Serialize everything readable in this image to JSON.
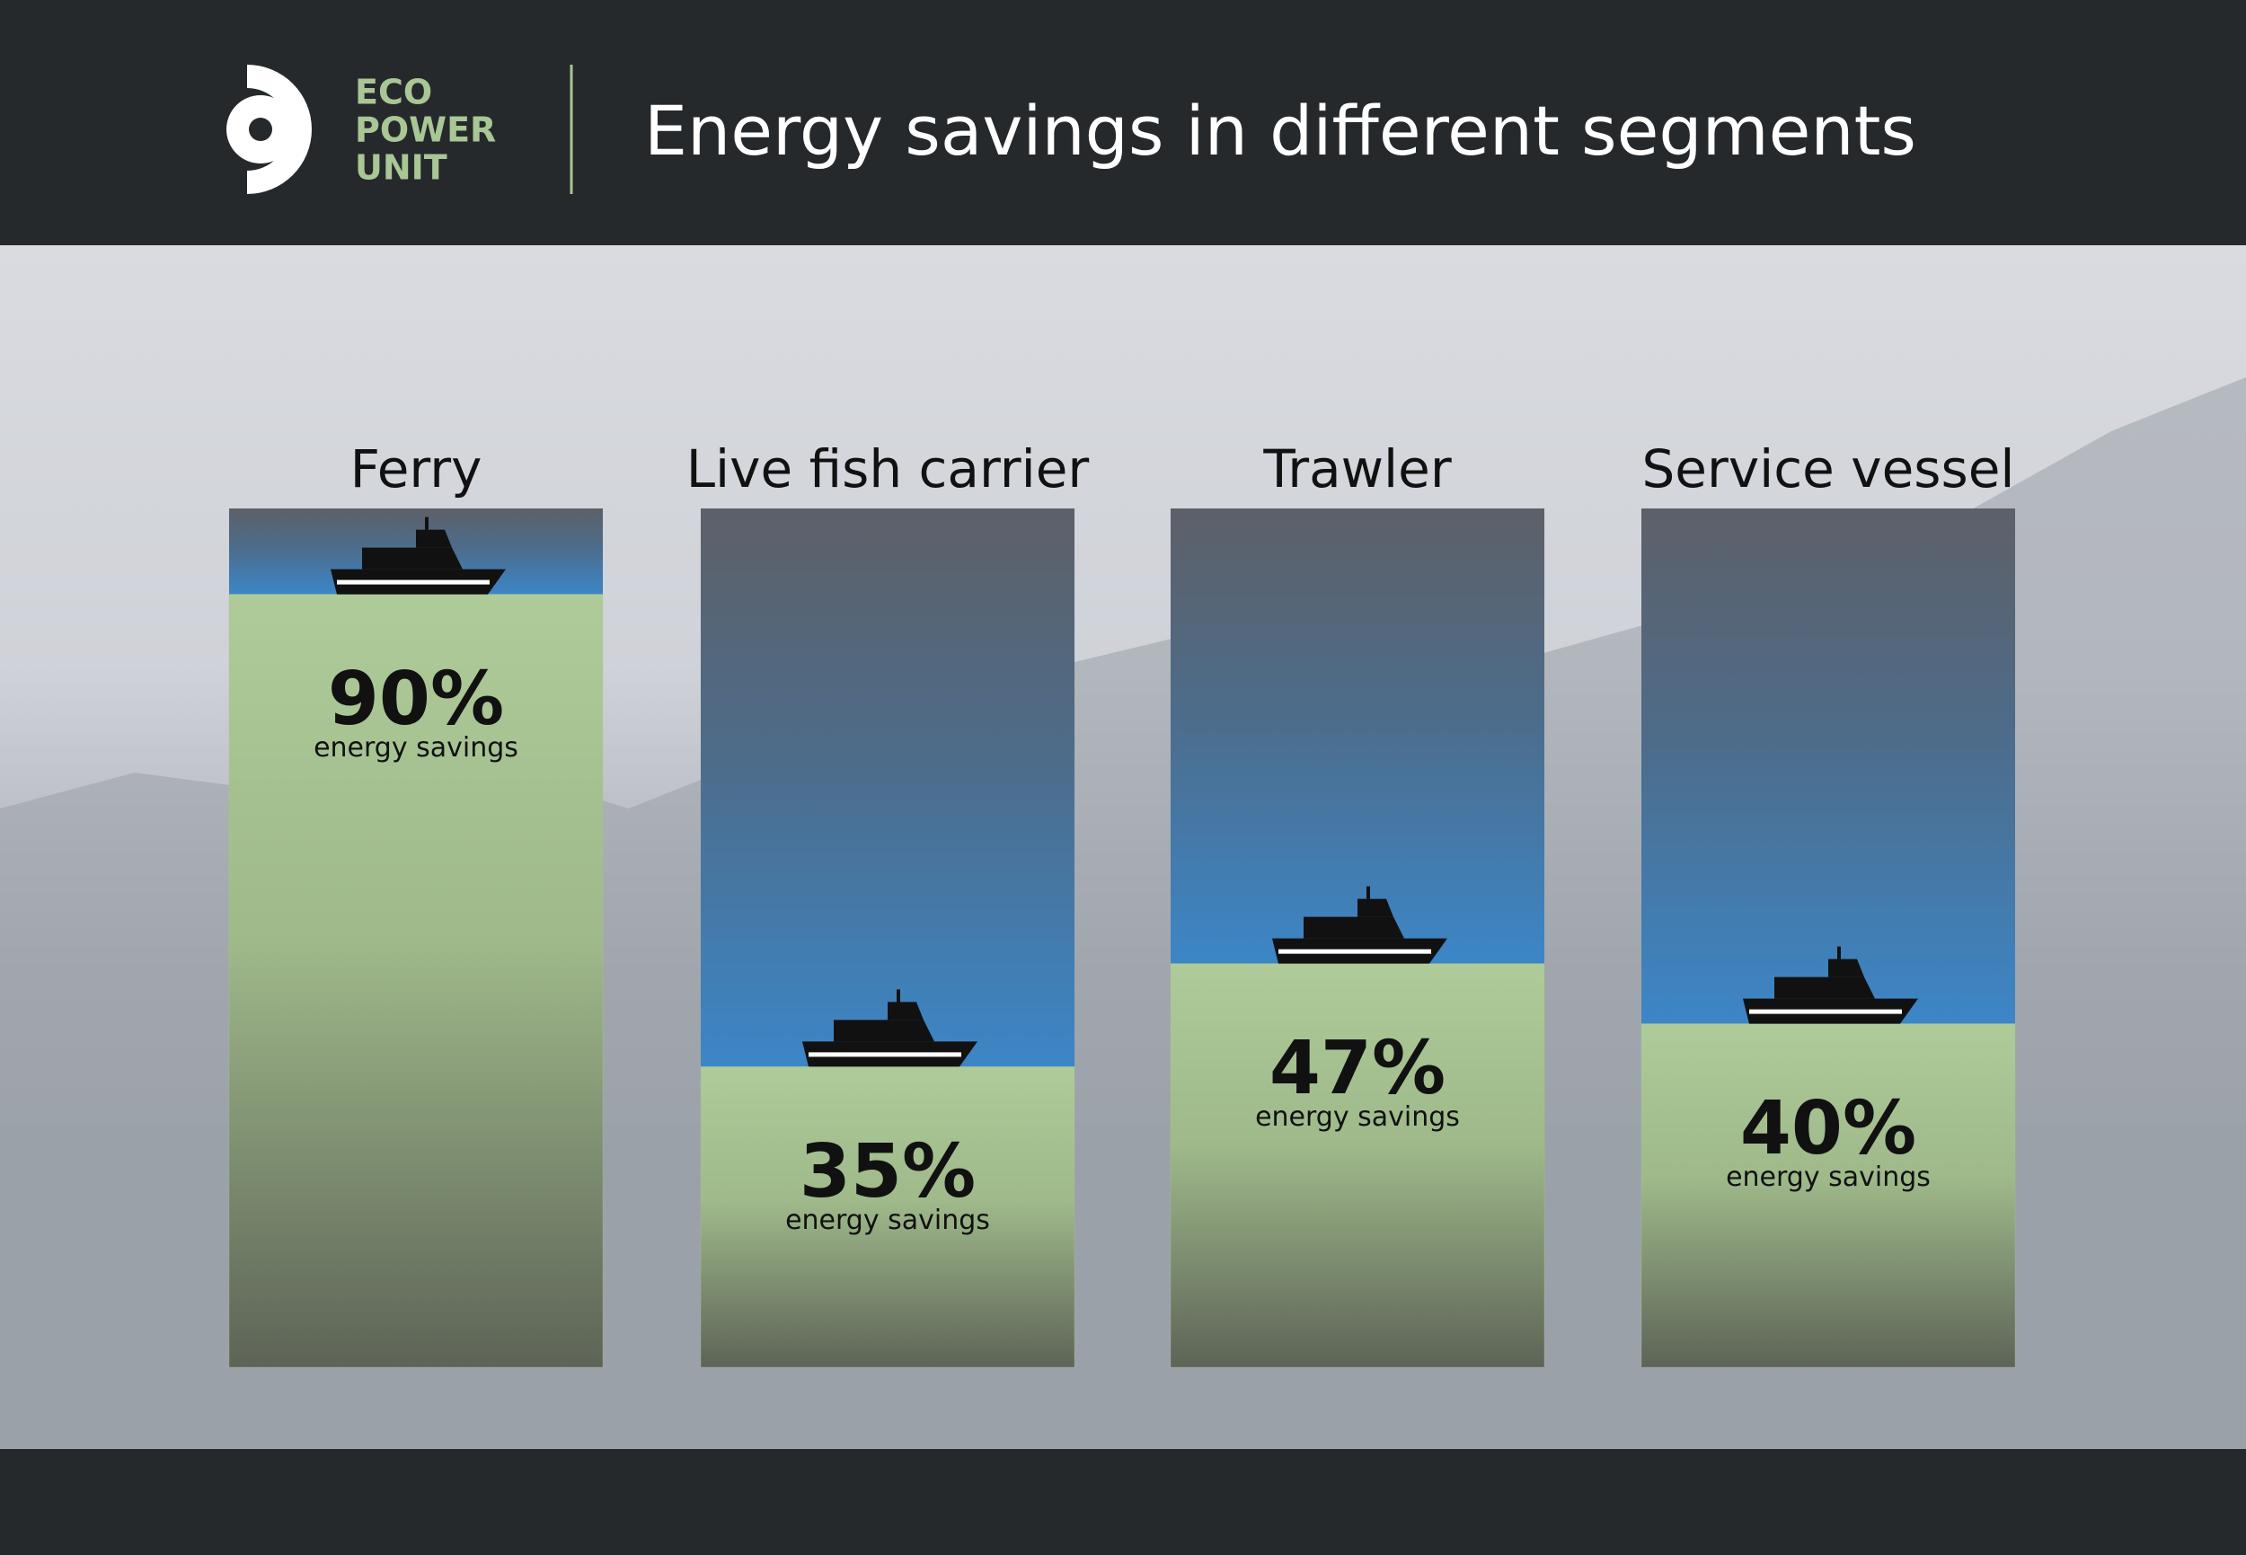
{
  "brand": {
    "lines": [
      "ECO",
      "POWER",
      "UNIT"
    ]
  },
  "chart_data": {
    "type": "bar",
    "title": "Energy savings in different segments",
    "categories": [
      "Ferry",
      "Live fish carrier",
      "Trawler",
      "Service vessel"
    ],
    "values": [
      90,
      35,
      47,
      40
    ],
    "value_labels": [
      "90%",
      "35%",
      "47%",
      "40%"
    ],
    "value_caption": "energy savings",
    "color": "#a9c695",
    "ylim": [
      0,
      100
    ]
  }
}
